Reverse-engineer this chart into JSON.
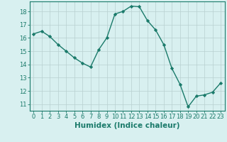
{
  "x": [
    0,
    1,
    2,
    3,
    4,
    5,
    6,
    7,
    8,
    9,
    10,
    11,
    12,
    13,
    14,
    15,
    16,
    17,
    18,
    19,
    20,
    21,
    22,
    23
  ],
  "y": [
    16.3,
    16.5,
    16.1,
    15.5,
    15.0,
    14.5,
    14.1,
    13.8,
    15.1,
    16.0,
    17.8,
    18.0,
    18.4,
    18.35,
    17.3,
    16.6,
    15.5,
    13.7,
    12.5,
    10.8,
    11.6,
    11.7,
    11.9,
    12.6
  ],
  "line_color": "#1a7a6a",
  "marker": "D",
  "marker_size": 2.2,
  "bg_color": "#d8f0f0",
  "grid_color": "#b8d0d0",
  "axis_color": "#1a7a6a",
  "xlabel": "Humidex (Indice chaleur)",
  "xlim": [
    -0.5,
    23.5
  ],
  "ylim": [
    10.5,
    18.75
  ],
  "yticks": [
    11,
    12,
    13,
    14,
    15,
    16,
    17,
    18
  ],
  "xticks": [
    0,
    1,
    2,
    3,
    4,
    5,
    6,
    7,
    8,
    9,
    10,
    11,
    12,
    13,
    14,
    15,
    16,
    17,
    18,
    19,
    20,
    21,
    22,
    23
  ],
  "xlabel_fontsize": 7.5,
  "tick_fontsize": 6.0,
  "linewidth": 1.0
}
